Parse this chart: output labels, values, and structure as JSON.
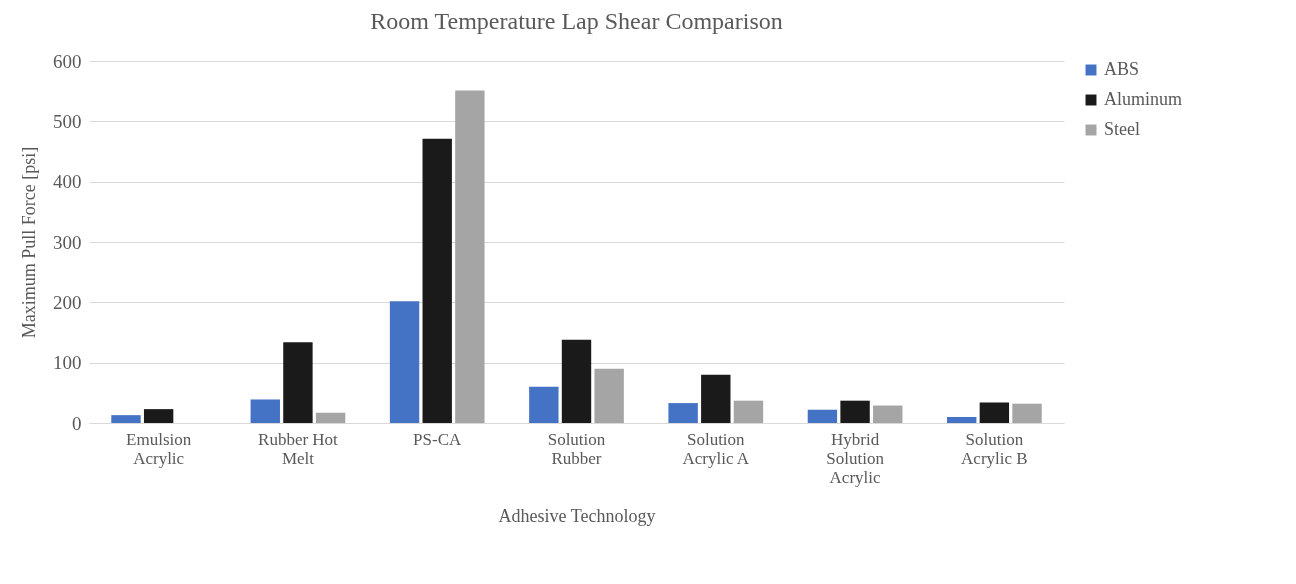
{
  "chart_data": {
    "type": "bar",
    "title": "Room Temperature Lap Shear Comparison",
    "xlabel": "Adhesive Technology",
    "ylabel": "Maximum Pull Force [psi]",
    "categories": [
      "Emulsion Acrylic",
      "Rubber Hot Melt",
      "PS-CA",
      "Solution Rubber",
      "Solution Acrylic A",
      "Hybrid Solution Acrylic",
      "Solution Acrylic B"
    ],
    "series": [
      {
        "name": "ABS",
        "color": "#4472c4",
        "values": [
          13,
          39,
          202,
          60,
          33,
          22,
          10
        ]
      },
      {
        "name": "Aluminum",
        "color": "#1a1a1a",
        "values": [
          23,
          134,
          471,
          138,
          80,
          37,
          34
        ]
      },
      {
        "name": "Steel",
        "color": "#a5a5a5",
        "values": [
          0,
          17,
          551,
          90,
          37,
          29,
          32
        ]
      }
    ],
    "ylim": [
      0,
      600
    ],
    "yticks": [
      0,
      100,
      200,
      300,
      400,
      500,
      600
    ],
    "grid": "y",
    "legend": "right"
  }
}
